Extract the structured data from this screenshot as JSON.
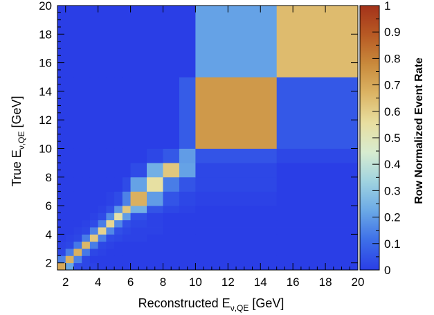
{
  "chart_data": {
    "type": "heatmap",
    "title": "",
    "xlabel": {
      "main": "Reconstructed E",
      "sub": "ν,QE",
      "unit": " [GeV]"
    },
    "ylabel": {
      "main": "True E",
      "sub": "ν,QE",
      "unit": " [GeV]"
    },
    "xlim": [
      1.5,
      20
    ],
    "ylim": [
      1.5,
      20
    ],
    "x_ticks": [
      "2",
      "4",
      "6",
      "8",
      "10",
      "12",
      "14",
      "16",
      "18",
      "20"
    ],
    "y_ticks": [
      "2",
      "4",
      "6",
      "8",
      "10",
      "12",
      "14",
      "16",
      "18",
      "20"
    ],
    "x_tick_values": [
      2,
      4,
      6,
      8,
      10,
      12,
      14,
      16,
      18,
      20
    ],
    "y_tick_values": [
      2,
      4,
      6,
      8,
      10,
      12,
      14,
      16,
      18,
      20
    ],
    "bin_edges": [
      1.5,
      2,
      2.5,
      3,
      3.5,
      4,
      4.5,
      5,
      5.5,
      6,
      7,
      8,
      9,
      10,
      15,
      20
    ],
    "values": [
      [
        0.7,
        0.22,
        0.03,
        0.02,
        0.01,
        0.0,
        0.0,
        0.0,
        0.0,
        0.0,
        0.0,
        0.0,
        0.0,
        0.0,
        0.0
      ],
      [
        0.15,
        0.68,
        0.15,
        0.02,
        0.0,
        0.0,
        0.0,
        0.0,
        0.0,
        0.0,
        0.0,
        0.0,
        0.0,
        0.0,
        0.0
      ],
      [
        0.02,
        0.14,
        0.68,
        0.13,
        0.02,
        0.01,
        0.0,
        0.0,
        0.0,
        0.0,
        0.0,
        0.0,
        0.0,
        0.0,
        0.0
      ],
      [
        0.01,
        0.02,
        0.13,
        0.66,
        0.14,
        0.02,
        0.01,
        0.0,
        0.0,
        0.0,
        0.0,
        0.0,
        0.0,
        0.0,
        0.0
      ],
      [
        0.0,
        0.01,
        0.02,
        0.14,
        0.62,
        0.14,
        0.03,
        0.02,
        0.01,
        0.01,
        0.0,
        0.0,
        0.0,
        0.0,
        0.0
      ],
      [
        0.0,
        0.0,
        0.01,
        0.02,
        0.15,
        0.59,
        0.16,
        0.04,
        0.02,
        0.01,
        0.01,
        0.0,
        0.0,
        0.0,
        0.0
      ],
      [
        0.0,
        0.0,
        0.0,
        0.01,
        0.03,
        0.14,
        0.58,
        0.16,
        0.04,
        0.02,
        0.01,
        0.0,
        0.0,
        0.0,
        0.0
      ],
      [
        0.0,
        0.0,
        0.0,
        0.0,
        0.01,
        0.03,
        0.17,
        0.54,
        0.2,
        0.04,
        0.01,
        0.0,
        0.0,
        0.0,
        0.0
      ],
      [
        0.0,
        0.0,
        0.0,
        0.0,
        0.0,
        0.01,
        0.04,
        0.19,
        0.62,
        0.24,
        0.05,
        0.02,
        0.01,
        0.0,
        0.0
      ],
      [
        0.0,
        0.0,
        0.0,
        0.0,
        0.0,
        0.0,
        0.01,
        0.03,
        0.15,
        0.68,
        0.2,
        0.05,
        0.02,
        0.01,
        0.0
      ],
      [
        0.0,
        0.0,
        0.0,
        0.0,
        0.0,
        0.0,
        0.0,
        0.0,
        0.03,
        0.21,
        0.55,
        0.14,
        0.05,
        0.02,
        0.0
      ],
      [
        0.0,
        0.0,
        0.0,
        0.0,
        0.0,
        0.0,
        0.0,
        0.0,
        0.0,
        0.03,
        0.24,
        0.62,
        0.21,
        0.02,
        0.0
      ],
      [
        0.0,
        0.0,
        0.0,
        0.0,
        0.0,
        0.0,
        0.0,
        0.0,
        0.0,
        0.0,
        0.02,
        0.06,
        0.2,
        0.05,
        0.02
      ],
      [
        0.0,
        0.0,
        0.0,
        0.0,
        0.0,
        0.0,
        0.0,
        0.0,
        0.0,
        0.0,
        0.0,
        0.0,
        0.07,
        0.74,
        0.06
      ],
      [
        0.0,
        0.0,
        0.0,
        0.0,
        0.0,
        0.0,
        0.0,
        0.0,
        0.0,
        0.0,
        0.0,
        0.0,
        0.0,
        0.21,
        0.65
      ]
    ],
    "value_axis": "rows = true energy bins (bottom to top), columns = reconstructed energy bins (left to right)",
    "colorbar": {
      "label": "Row Normalized Event Rate",
      "range": [
        0,
        1
      ],
      "ticks": [
        "0",
        "0.1",
        "0.2",
        "0.3",
        "0.4",
        "0.5",
        "0.6",
        "0.7",
        "0.8",
        "0.9",
        "1"
      ]
    },
    "colorscale": [
      "#2a3ee6",
      "#3d6ee8",
      "#6aa8e6",
      "#9fd3e0",
      "#d7ecd0",
      "#e8dfa0",
      "#dcb565",
      "#c98a3c",
      "#b85a24",
      "#a3321a"
    ],
    "grid": false,
    "legend": "none"
  }
}
